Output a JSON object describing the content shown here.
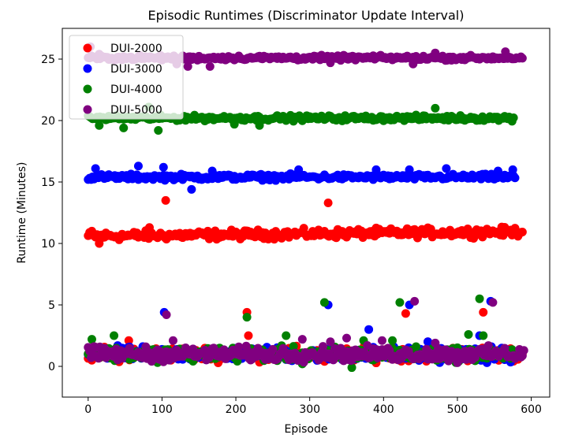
{
  "chart_data": {
    "type": "scatter",
    "title": "Episodic Runtimes (Discriminator Update Interval)",
    "xlabel": "Episode",
    "ylabel": "Runtime (Minutes)",
    "xlim": [
      -35,
      625
    ],
    "ylim": [
      -2.5,
      27.5
    ],
    "xticks": [
      0,
      100,
      200,
      300,
      400,
      500,
      600
    ],
    "yticks": [
      0,
      5,
      10,
      15,
      20,
      25
    ],
    "grid": false,
    "legend_position": "top-left",
    "series": [
      {
        "name": "DUI-2000",
        "color": "#ff0000",
        "upper_level": 10.6,
        "upper_spread": 0.35,
        "lower_level": 1.0,
        "count": 590,
        "outliers": [
          [
            5,
            11.0
          ],
          [
            15,
            10.0
          ],
          [
            83,
            11.3
          ],
          [
            105,
            13.5
          ],
          [
            325,
            13.3
          ],
          [
            215,
            4.4
          ],
          [
            217,
            2.5
          ],
          [
            430,
            4.3
          ],
          [
            460,
            2.0
          ],
          [
            535,
            4.4
          ],
          [
            55,
            2.1
          ],
          [
            5,
            0.5
          ],
          [
            320,
            0.4
          ]
        ]
      },
      {
        "name": "DUI-3000",
        "color": "#0000ff",
        "upper_level": 15.4,
        "upper_spread": 0.22,
        "lower_level": 1.0,
        "count": 580,
        "outliers": [
          [
            10,
            16.1
          ],
          [
            68,
            16.3
          ],
          [
            102,
            16.2
          ],
          [
            140,
            14.4
          ],
          [
            168,
            15.9
          ],
          [
            285,
            16.0
          ],
          [
            390,
            16.0
          ],
          [
            435,
            16.0
          ],
          [
            485,
            16.1
          ],
          [
            555,
            15.9
          ],
          [
            575,
            16.0
          ],
          [
            103,
            4.4
          ],
          [
            325,
            5.0
          ],
          [
            380,
            3.0
          ],
          [
            435,
            5.0
          ],
          [
            530,
            2.5
          ],
          [
            545,
            5.3
          ],
          [
            460,
            2.0
          ],
          [
            540,
            0.3
          ]
        ]
      },
      {
        "name": "DUI-4000",
        "color": "#008000",
        "upper_level": 20.2,
        "upper_spread": 0.2,
        "lower_level": 1.0,
        "count": 578,
        "outliers": [
          [
            15,
            19.6
          ],
          [
            48,
            19.4
          ],
          [
            95,
            19.2
          ],
          [
            198,
            19.7
          ],
          [
            232,
            19.6
          ],
          [
            470,
            21.0
          ],
          [
            82,
            21.1
          ],
          [
            5,
            2.2
          ],
          [
            35,
            2.5
          ],
          [
            215,
            4.0
          ],
          [
            268,
            2.5
          ],
          [
            320,
            5.2
          ],
          [
            373,
            2.1
          ],
          [
            412,
            2.1
          ],
          [
            422,
            5.2
          ],
          [
            515,
            2.6
          ],
          [
            530,
            5.5
          ],
          [
            535,
            2.5
          ],
          [
            357,
            -0.1
          ],
          [
            290,
            0.2
          ]
        ]
      },
      {
        "name": "DUI-5000",
        "color": "#800080",
        "upper_level": 25.1,
        "upper_spread": 0.18,
        "lower_level": 1.0,
        "count": 590,
        "outliers": [
          [
            3,
            26.0
          ],
          [
            15,
            25.4
          ],
          [
            120,
            24.6
          ],
          [
            135,
            24.4
          ],
          [
            165,
            24.4
          ],
          [
            328,
            24.7
          ],
          [
            440,
            24.6
          ],
          [
            470,
            25.5
          ],
          [
            565,
            25.6
          ],
          [
            106,
            4.2
          ],
          [
            115,
            2.1
          ],
          [
            290,
            2.2
          ],
          [
            328,
            2.0
          ],
          [
            350,
            2.3
          ],
          [
            398,
            2.1
          ],
          [
            442,
            5.3
          ],
          [
            470,
            1.9
          ],
          [
            548,
            5.2
          ],
          [
            500,
            0.3
          ],
          [
            590,
            1.3
          ]
        ]
      }
    ]
  }
}
